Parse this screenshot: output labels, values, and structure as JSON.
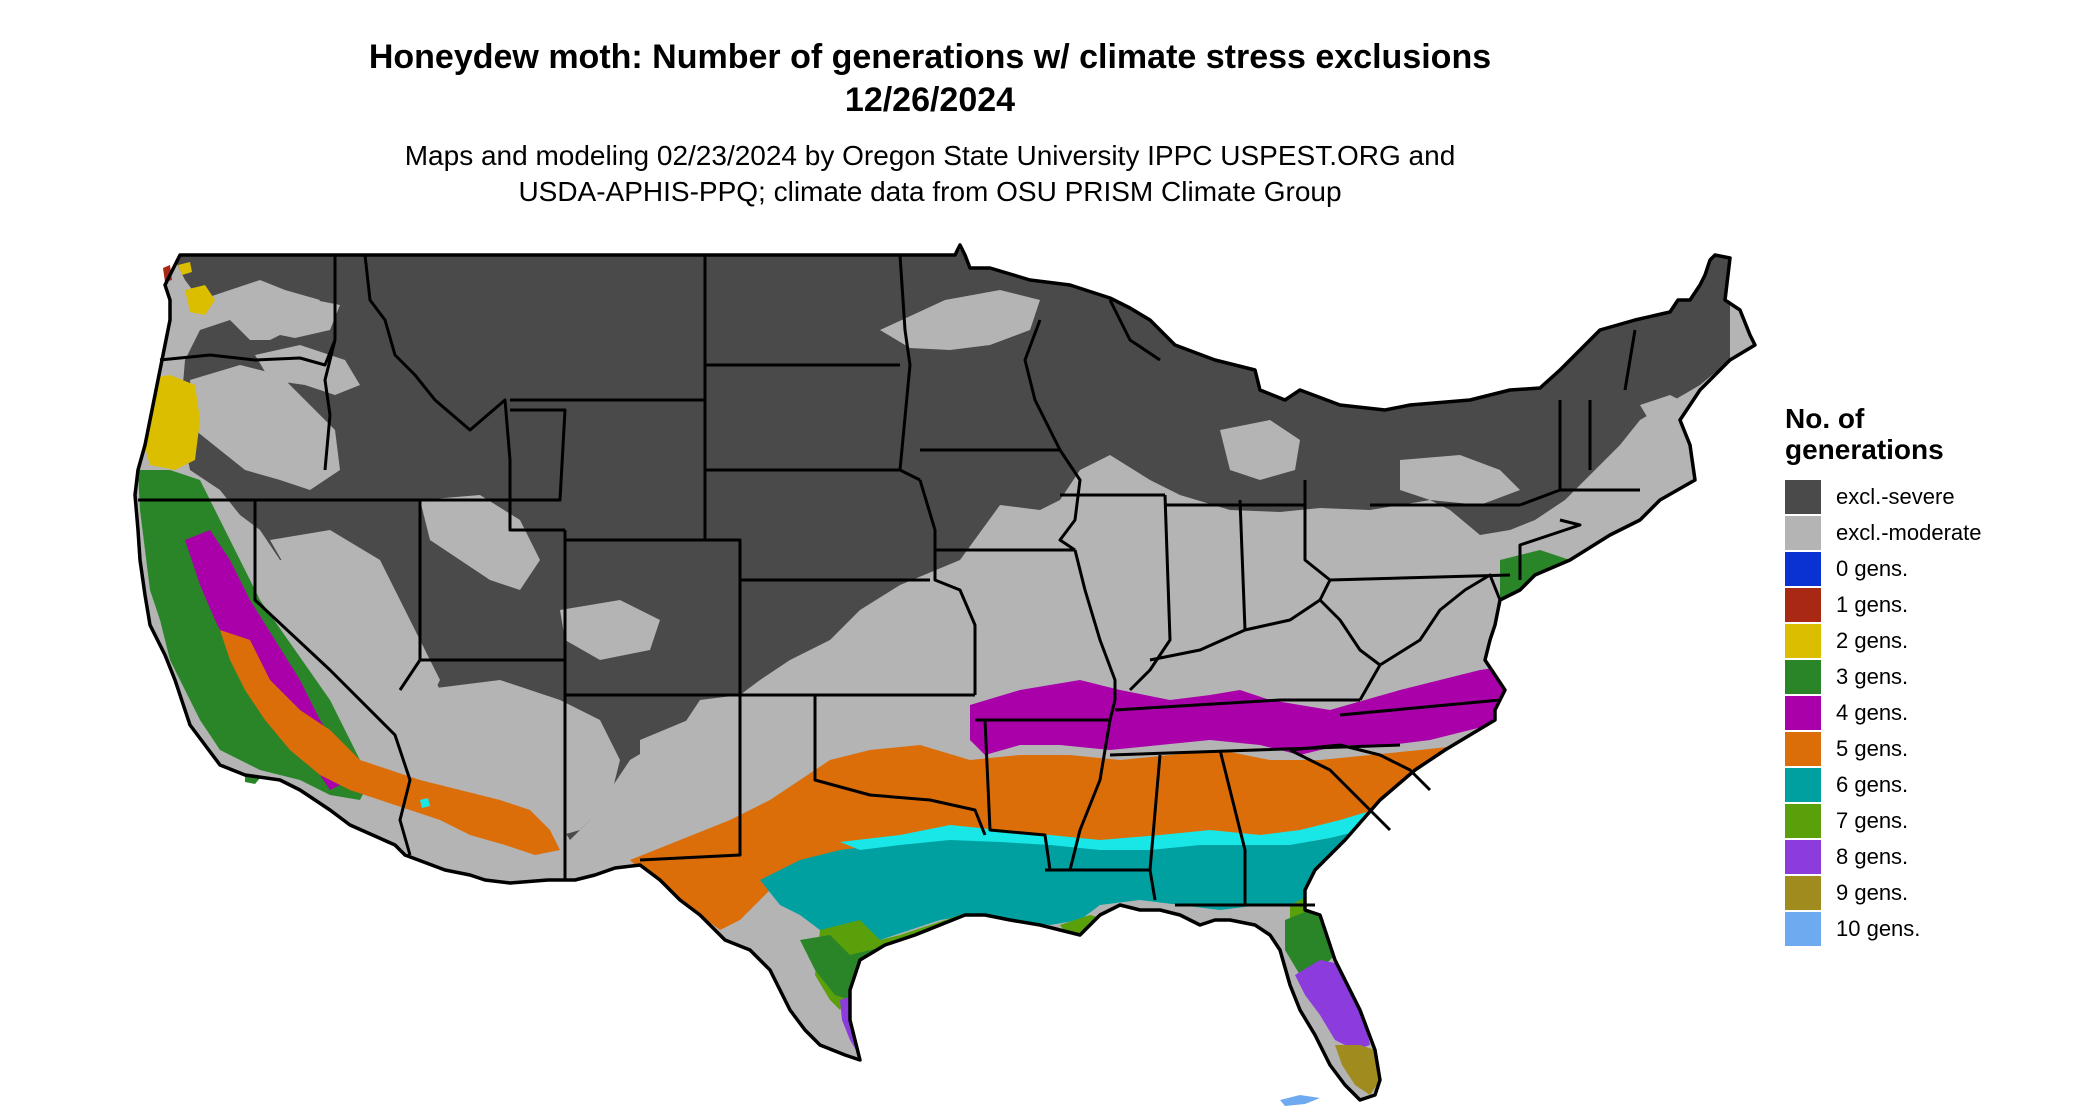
{
  "title": {
    "line1": "Honeydew moth: Number of generations w/ climate stress exclusions",
    "line2": "12/26/2024"
  },
  "subtitle": {
    "line1": "Maps and modeling 02/23/2024 by Oregon State University IPPC USPEST.ORG and",
    "line2": "USDA-APHIS-PPQ; climate data from OSU PRISM Climate Group"
  },
  "legend": {
    "title_line1": "No. of",
    "title_line2": "generations",
    "items": [
      {
        "label": "excl.-severe",
        "color": "#4a4a4a"
      },
      {
        "label": "excl.-moderate",
        "color": "#b4b4b4"
      },
      {
        "label": "0 gens.",
        "color": "#0a32d2"
      },
      {
        "label": "1 gens.",
        "color": "#a82814"
      },
      {
        "label": "2 gens.",
        "color": "#dcbe00"
      },
      {
        "label": "3 gens.",
        "color": "#2a8428"
      },
      {
        "label": "4 gens.",
        "color": "#aa00aa"
      },
      {
        "label": "5 gens.",
        "color": "#dc6e0a"
      },
      {
        "label": "6 gens.",
        "color": "#00a0a0"
      },
      {
        "label": "7 gens.",
        "color": "#5aa00a"
      },
      {
        "label": "8 gens.",
        "color": "#8c3cdc"
      },
      {
        "label": "9 gens.",
        "color": "#a08c1e"
      },
      {
        "label": "10 gens.",
        "color": "#6eaaf0"
      }
    ]
  },
  "colors": {
    "boundary": "#000000",
    "cyan_band": "#19e6e6"
  }
}
